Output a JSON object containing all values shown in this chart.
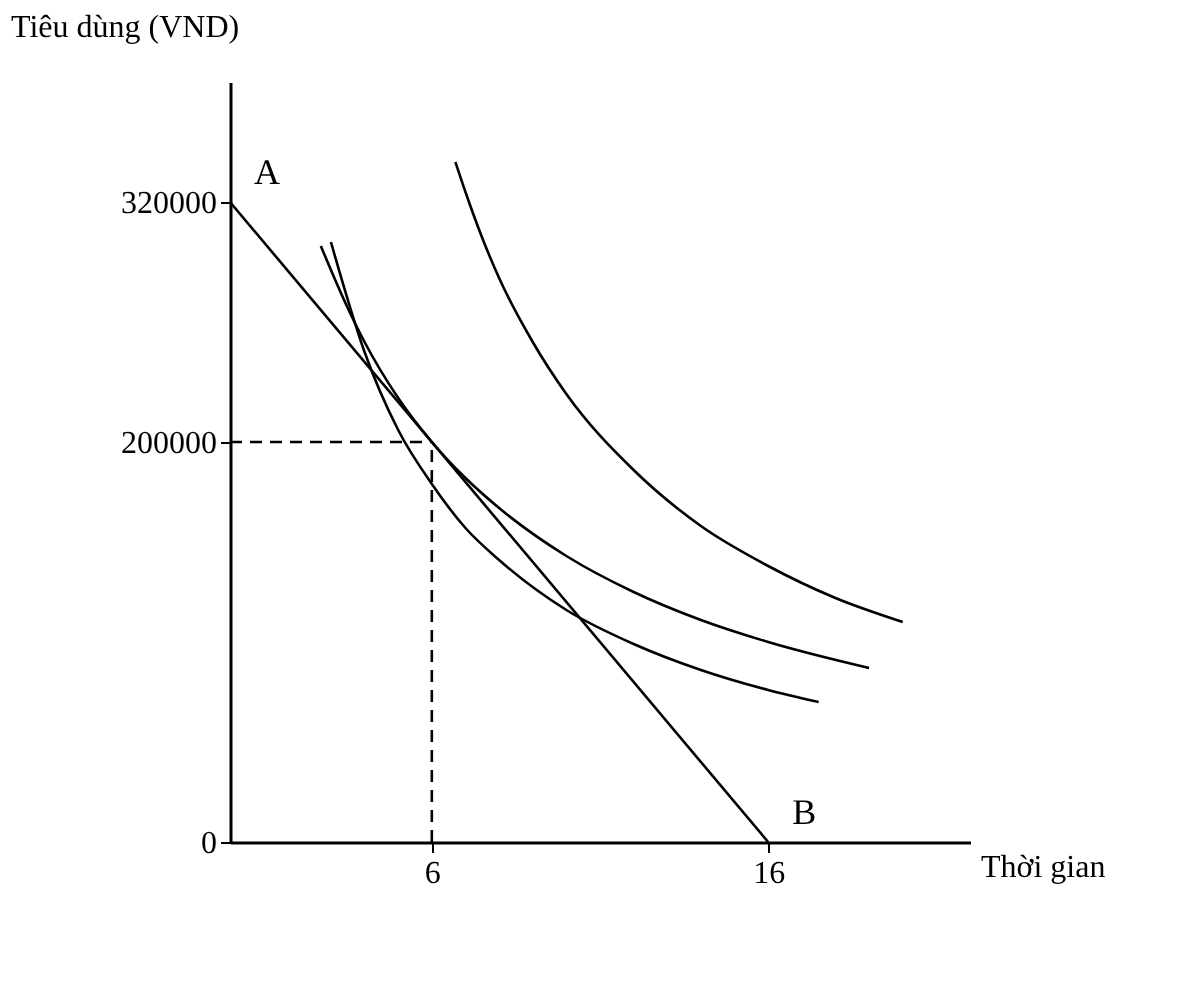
{
  "chart_data": {
    "type": "line",
    "xlabel": "Thời gian",
    "ylabel": "Tiêu dùng (VND)",
    "xlim": [
      0,
      22
    ],
    "ylim": [
      0,
      380000
    ],
    "xticks": [
      6,
      16
    ],
    "yticks": [
      0,
      200000,
      320000
    ],
    "grid": false,
    "marker": "none",
    "series": [
      {
        "color": "#000000",
        "line_style": "solid",
        "x": [
          0,
          16
        ],
        "values": [
          320000,
          0
        ]
      },
      {
        "color": "#000000",
        "line_style": "solid",
        "x": [
          3,
          4,
          5,
          6,
          7,
          8,
          10,
          12,
          14,
          16,
          17.5
        ],
        "values": [
          300000,
          245000,
          206000,
          179000,
          157000,
          141000,
          116000,
          99000,
          86000,
          76000,
          70000
        ]
      },
      {
        "color": "#000000",
        "line_style": "solid",
        "x": [
          2.7,
          3.5,
          4,
          5,
          6,
          7,
          8,
          10,
          12,
          14,
          16,
          19
        ],
        "values": [
          298000,
          267000,
          250000,
          222000,
          200000,
          182000,
          167000,
          143000,
          125000,
          111000,
          100000,
          87000
        ]
      },
      {
        "color": "#000000",
        "line_style": "solid",
        "x": [
          6.7,
          7,
          7.5,
          8,
          9,
          10,
          12,
          14,
          16,
          18,
          20
        ],
        "values": [
          340000,
          325000,
          302000,
          282000,
          250000,
          224000,
          186000,
          158000,
          138000,
          122000,
          110000
        ]
      },
      {
        "color": "#000000",
        "line_style": "dashed",
        "x": [
          0,
          6
        ],
        "values": [
          200000,
          200000
        ]
      },
      {
        "color": "#000000",
        "line_style": "dashed",
        "x": [
          6,
          6
        ],
        "values": [
          0,
          200000
        ]
      }
    ],
    "annotations": [
      {
        "text": "A",
        "x": 0,
        "y": 320000
      },
      {
        "text": "B",
        "x": 16,
        "y": 0
      }
    ]
  }
}
